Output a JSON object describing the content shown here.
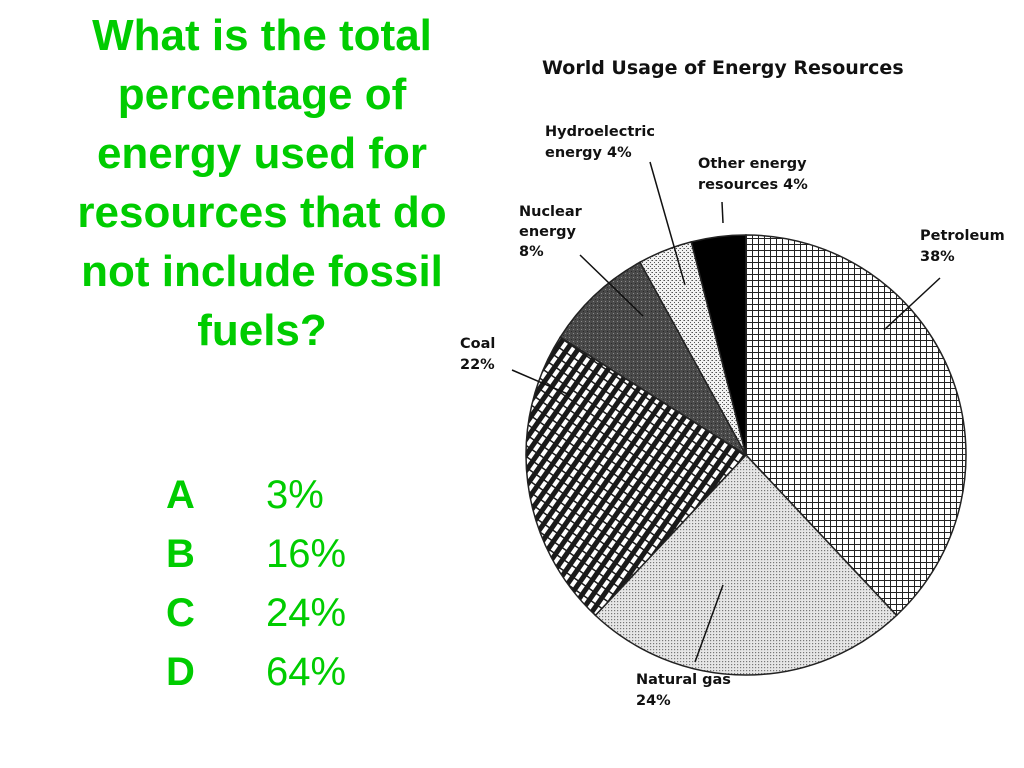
{
  "question": {
    "lines": [
      "What is the total",
      "percentage of",
      "energy used for",
      "resources that do",
      "not include fossil",
      "fuels?"
    ]
  },
  "answers": [
    {
      "letter": "A",
      "value": "3%"
    },
    {
      "letter": "B",
      "value": "16%"
    },
    {
      "letter": "C",
      "value": "24%"
    },
    {
      "letter": "D",
      "value": "64%"
    }
  ],
  "colors": {
    "text_green": "#00cc00",
    "ink": "#111111"
  },
  "chart_data": {
    "type": "pie",
    "title": "World Usage of Energy Resources",
    "slices": [
      {
        "name": "Petroleum",
        "value": 38,
        "label_lines": [
          "Petroleum",
          "38%"
        ],
        "pattern": "grid"
      },
      {
        "name": "Natural gas",
        "value": 24,
        "label_lines": [
          "Natural gas",
          "24%"
        ],
        "pattern": "dots"
      },
      {
        "name": "Coal",
        "value": 22,
        "label_lines": [
          "Coal",
          "22%"
        ],
        "pattern": "stripes"
      },
      {
        "name": "Nuclear energy",
        "value": 8,
        "label_lines": [
          "Nuclear",
          "energy",
          "8%"
        ],
        "pattern": "dark"
      },
      {
        "name": "Hydroelectric energy",
        "value": 4,
        "label_lines": [
          "Hydroelectric",
          "energy 4%"
        ],
        "pattern": "speckle"
      },
      {
        "name": "Other energy resources",
        "value": 4,
        "label_lines": [
          "Other energy",
          "resources 4%"
        ],
        "pattern": "black"
      }
    ]
  }
}
